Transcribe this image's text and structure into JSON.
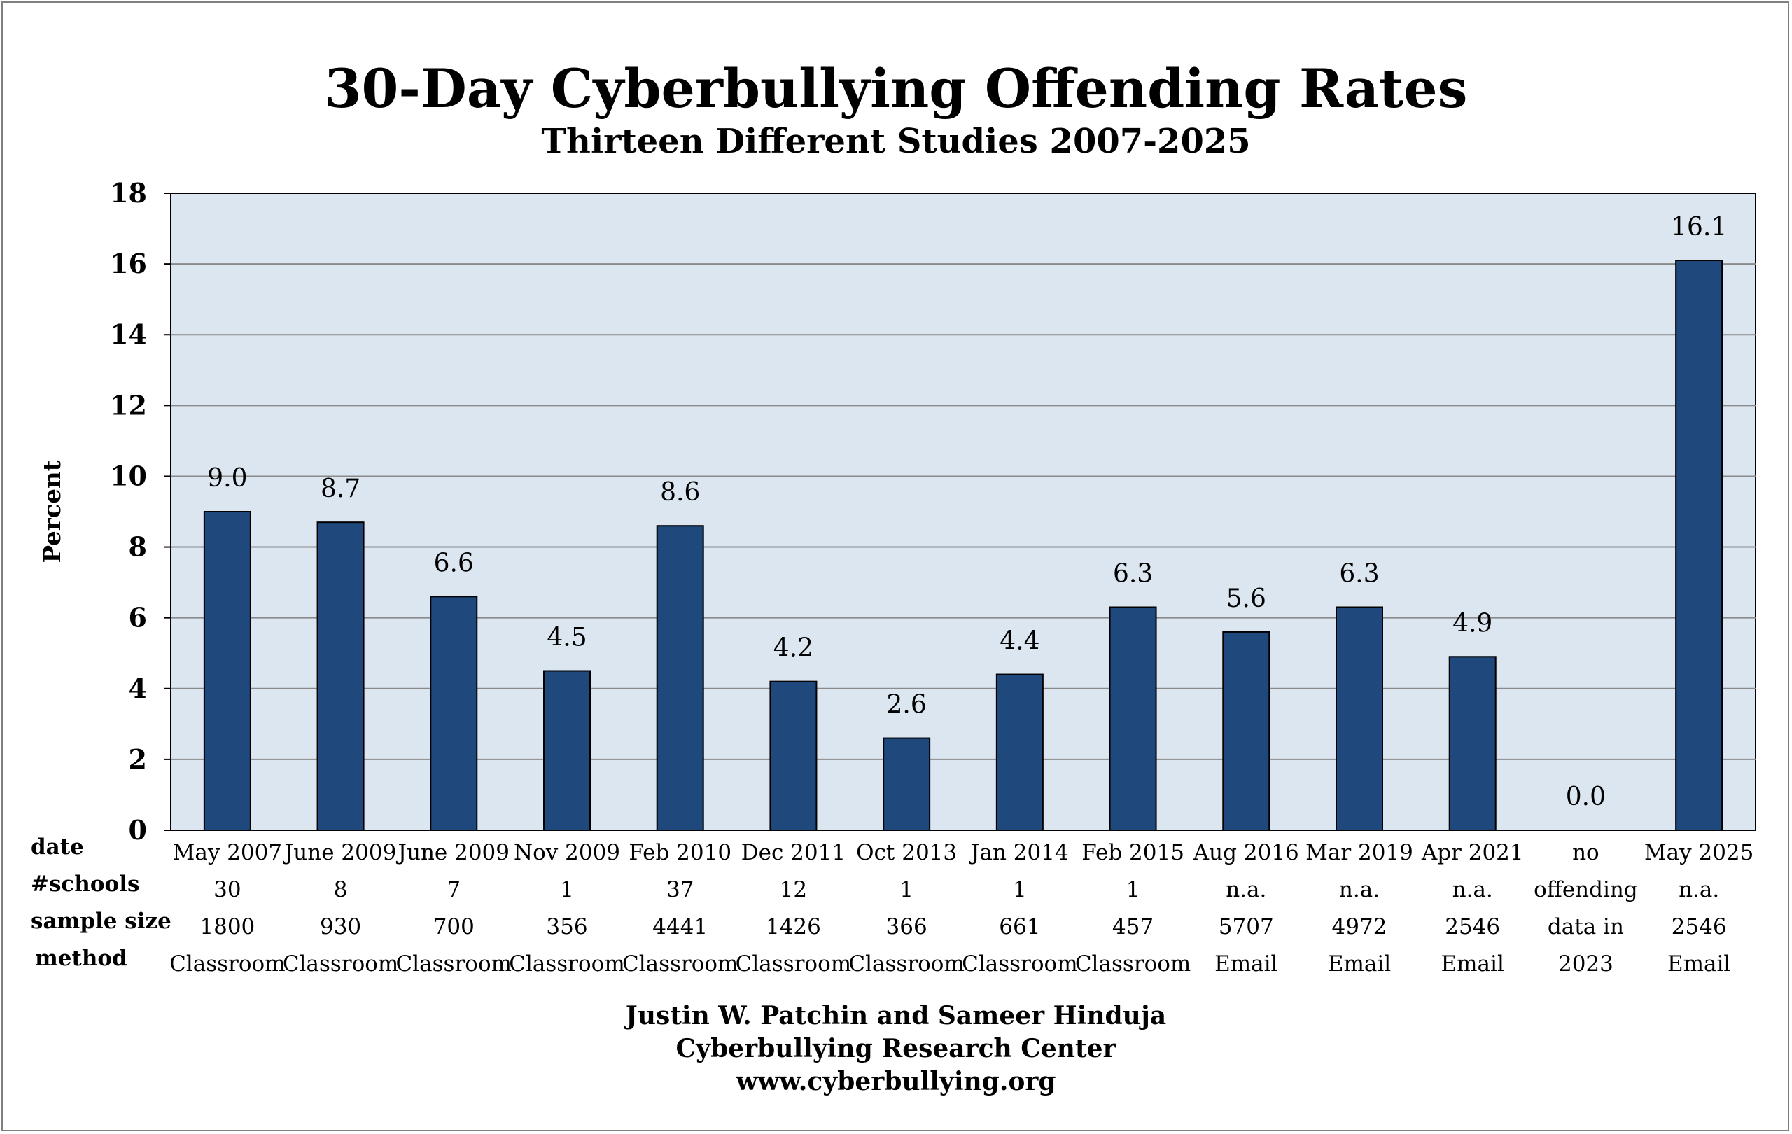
{
  "title": "30-Day Cyberbullying Offending Rates",
  "subtitle": "Thirteen Different Studies 2007-2025",
  "chart_data": {
    "type": "bar",
    "title": "30-Day Cyberbullying Offending Rates",
    "subtitle": "Thirteen Different Studies 2007-2025",
    "ylabel": "Percent",
    "xlabel": "",
    "ylim": [
      0,
      18
    ],
    "yticks": [
      0,
      2,
      4,
      6,
      8,
      10,
      12,
      14,
      16,
      18
    ],
    "grid": true,
    "legend": "none",
    "bar_color": "#1f497d",
    "plot_background": "#dce6f1",
    "categories": [
      "May 2007",
      "June 2009",
      "June 2009",
      "Nov 2009",
      "Feb 2010",
      "Dec 2011",
      "Oct 2013",
      "Jan 2014",
      "Feb 2015",
      "Aug 2016",
      "Mar 2019",
      "Apr 2021",
      "no",
      "May 2025"
    ],
    "values": [
      9.0,
      8.7,
      6.6,
      4.5,
      8.6,
      4.2,
      2.6,
      4.4,
      6.3,
      5.6,
      6.3,
      4.9,
      0.0,
      16.1
    ],
    "data_labels": [
      "9.0",
      "8.7",
      "6.6",
      "4.5",
      "8.6",
      "4.2",
      "2.6",
      "4.4",
      "6.3",
      "5.6",
      "6.3",
      "4.9",
      "0.0",
      "16.1"
    ],
    "table": {
      "row_labels": [
        "date",
        "#schools",
        "sample size",
        "method"
      ],
      "schools": [
        "30",
        "8",
        "7",
        "1",
        "37",
        "12",
        "1",
        "1",
        "1",
        "n.a.",
        "n.a.",
        "n.a.",
        "offending",
        "n.a."
      ],
      "sample_size": [
        "1800",
        "930",
        "700",
        "356",
        "4441",
        "1426",
        "366",
        "661",
        "457",
        "5707",
        "4972",
        "2546",
        "data in",
        "2546"
      ],
      "method": [
        "Classroom",
        "Classroom",
        "Classroom",
        "Classroom",
        "Classroom",
        "Classroom",
        "Classroom",
        "Classroom",
        "Classroom",
        "Email",
        "Email",
        "Email",
        "2023",
        "Email"
      ]
    }
  },
  "footer": {
    "line1": "Justin W. Patchin and Sameer Hinduja",
    "line2": "Cyberbullying Research Center",
    "line3": "www.cyberbullying.org"
  }
}
